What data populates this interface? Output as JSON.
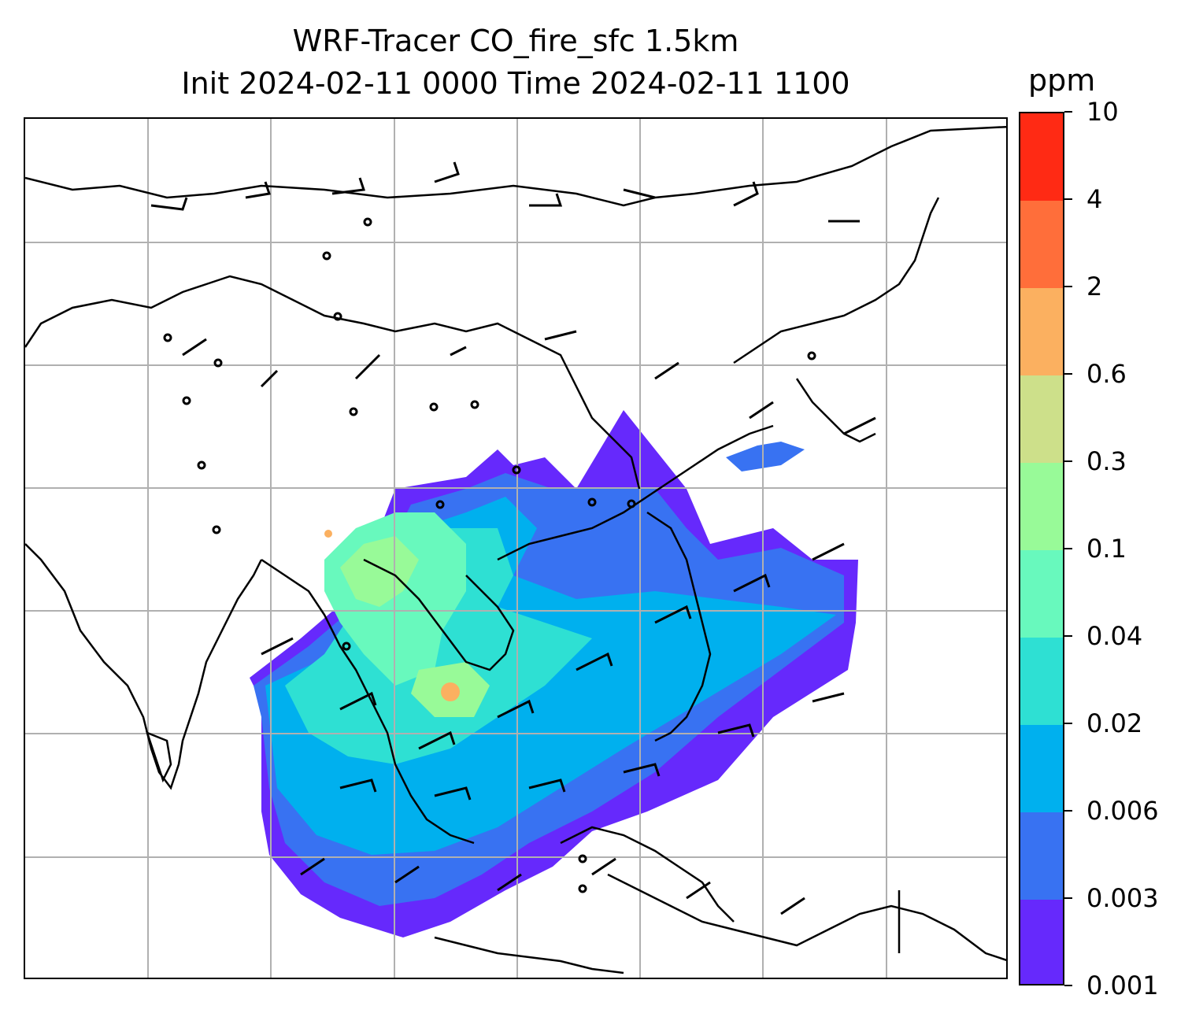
{
  "title": {
    "line1": "WRF-Tracer CO_fire_sfc 1.5km",
    "line2": "Init 2024-02-11 0000 Time 2024-02-11 1100"
  },
  "colorbar": {
    "unit": "ppm",
    "labels": [
      "10",
      "4",
      "2",
      "0.6",
      "0.3",
      "0.1",
      "0.04",
      "0.02",
      "0.006",
      "0.003",
      "0.001"
    ],
    "colors": [
      "#ff2a14",
      "#ff6e3a",
      "#fbb060",
      "#cde08a",
      "#98fa98",
      "#68f9bd",
      "#2ee0d3",
      "#00b0ee",
      "#3872f2",
      "#6629fc"
    ]
  },
  "map": {
    "gridline_color": "#b0b0b0",
    "coastline_color": "#000000",
    "plume_colors": {
      "lowest": "#6629fc",
      "low": "#3872f2",
      "mid_low": "#00b0ee",
      "mid": "#2ee0d3",
      "mid_high": "#68f9bd",
      "high": "#98fa98",
      "peak": "#fbb060"
    }
  }
}
